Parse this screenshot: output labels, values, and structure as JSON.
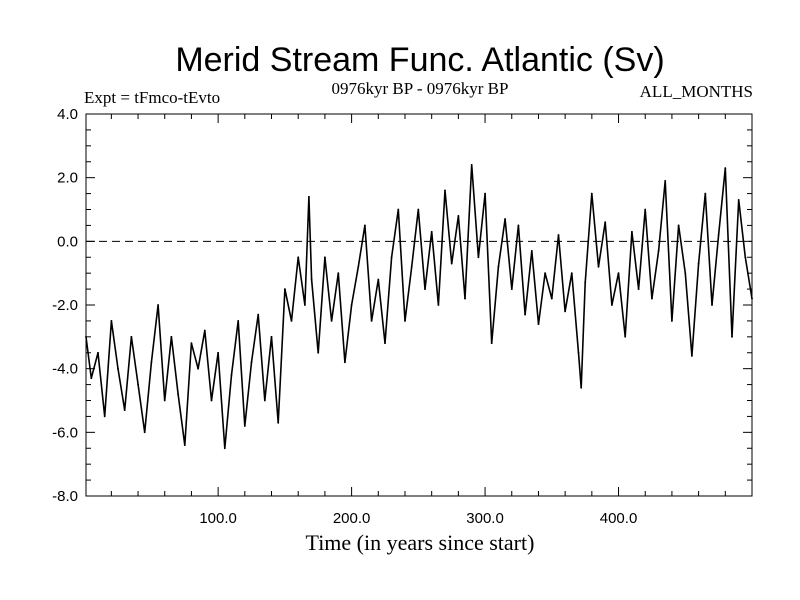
{
  "chart_data": {
    "type": "line",
    "title": "Merid Stream Func. Atlantic (Sv)",
    "subtitle_left": "Expt = tFmco-tEvto",
    "subtitle_center": "0976kyr BP - 0976kyr BP",
    "subtitle_right": "ALL_MONTHS",
    "xlabel": "Time (in years since start)",
    "ylabel": "",
    "xlim": [
      1,
      500
    ],
    "ylim": [
      -8.0,
      4.0
    ],
    "x_ticks": [
      100,
      200,
      300,
      400
    ],
    "x_tick_labels": [
      "100.0",
      "200.0",
      "300.0",
      "400.0"
    ],
    "y_ticks": [
      4,
      2,
      0,
      -2,
      -4,
      -6,
      -8
    ],
    "y_tick_labels": [
      "4.0",
      "2.0",
      "0.0",
      "-2.0",
      "-4.0",
      "-6.0",
      "-8.0"
    ],
    "reference_line": {
      "y": 0.0,
      "style": "dashed"
    },
    "series": [
      {
        "name": "Merid Stream Func. Atlantic",
        "x": [
          1,
          5,
          10,
          15,
          20,
          25,
          30,
          35,
          40,
          45,
          50,
          55,
          60,
          65,
          70,
          75,
          80,
          85,
          90,
          95,
          100,
          105,
          110,
          115,
          120,
          125,
          130,
          135,
          140,
          145,
          150,
          155,
          160,
          165,
          168,
          170,
          175,
          180,
          185,
          190,
          195,
          200,
          205,
          210,
          215,
          220,
          225,
          230,
          235,
          240,
          245,
          250,
          255,
          260,
          265,
          270,
          275,
          280,
          285,
          290,
          295,
          300,
          305,
          310,
          315,
          320,
          325,
          330,
          335,
          340,
          345,
          350,
          355,
          360,
          365,
          370,
          372,
          375,
          380,
          385,
          390,
          395,
          400,
          405,
          410,
          415,
          420,
          425,
          430,
          435,
          440,
          445,
          450,
          455,
          460,
          465,
          470,
          475,
          480,
          485,
          490,
          495,
          500
        ],
        "values": [
          -3.0,
          -4.3,
          -3.5,
          -5.5,
          -2.5,
          -4.0,
          -5.3,
          -3.0,
          -4.5,
          -6.0,
          -3.8,
          -2.0,
          -5.0,
          -3.0,
          -4.8,
          -6.4,
          -3.2,
          -4.0,
          -2.8,
          -5.0,
          -3.5,
          -6.5,
          -4.2,
          -2.5,
          -5.8,
          -3.8,
          -2.3,
          -5.0,
          -3.0,
          -5.7,
          -1.5,
          -2.5,
          -0.5,
          -2.0,
          1.4,
          -1.2,
          -3.5,
          -0.5,
          -2.5,
          -1.0,
          -3.8,
          -2.0,
          -0.8,
          0.5,
          -2.5,
          -1.2,
          -3.2,
          -0.5,
          1.0,
          -2.5,
          -0.8,
          1.0,
          -1.5,
          0.3,
          -2.0,
          1.6,
          -0.7,
          0.8,
          -1.8,
          2.4,
          -0.5,
          1.5,
          -3.2,
          -0.8,
          0.7,
          -1.5,
          0.5,
          -2.3,
          -0.3,
          -2.6,
          -1.0,
          -1.8,
          0.2,
          -2.2,
          -1.0,
          -3.5,
          -4.6,
          -1.3,
          1.5,
          -0.8,
          0.6,
          -2.0,
          -1.0,
          -3.0,
          0.3,
          -1.5,
          1.0,
          -1.8,
          -0.3,
          1.9,
          -2.5,
          0.5,
          -1.0,
          -3.6,
          -0.7,
          1.5,
          -2.0,
          0.2,
          2.3,
          -3.0,
          1.3,
          -0.5,
          -1.8
        ]
      }
    ]
  }
}
